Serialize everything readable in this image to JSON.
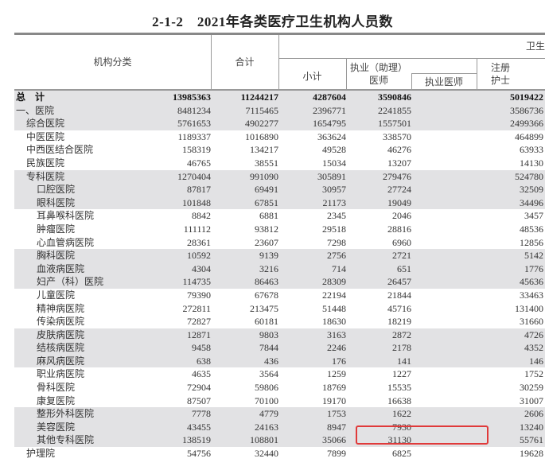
{
  "title": "2-1-2　2021年各类医疗卫生机构人员数",
  "header": {
    "category": "机构分类",
    "total": "合计",
    "group": "卫生",
    "subtotal": "小计",
    "licensed_asst_doctor": "执业（助理）\n医师",
    "licensed_asst_doctor_l1": "执业（助理）",
    "licensed_asst_doctor_l2": "医师",
    "licensed_doctor": "执业医师",
    "nurse_l1": "注册",
    "nurse_l2": "护士"
  },
  "highlight_color": "#e03a3a",
  "rows": [
    {
      "label": "总　计",
      "indent": 0,
      "bold": true,
      "shade": true,
      "values": [
        "13985363",
        "11244217",
        "4287604",
        "3590846",
        "5019422"
      ]
    },
    {
      "label": "一、医院",
      "indent": 0,
      "shade": true,
      "values": [
        "8481234",
        "7115465",
        "2396771",
        "2241855",
        "3586736"
      ]
    },
    {
      "label": "综合医院",
      "indent": 1,
      "shade": true,
      "values": [
        "5761653",
        "4902277",
        "1654795",
        "1557501",
        "2499366"
      ]
    },
    {
      "label": "中医医院",
      "indent": 1,
      "values": [
        "1189337",
        "1016890",
        "363624",
        "338570",
        "464899"
      ]
    },
    {
      "label": "中西医结合医院",
      "indent": 1,
      "values": [
        "158319",
        "134217",
        "49528",
        "46276",
        "63933"
      ]
    },
    {
      "label": "民族医院",
      "indent": 1,
      "values": [
        "46765",
        "38551",
        "15034",
        "13207",
        "14130"
      ]
    },
    {
      "label": "专科医院",
      "indent": 1,
      "shade": true,
      "values": [
        "1270404",
        "991090",
        "305891",
        "279476",
        "524780"
      ]
    },
    {
      "label": "口腔医院",
      "indent": 2,
      "shade": true,
      "values": [
        "87817",
        "69491",
        "30957",
        "27724",
        "32509"
      ]
    },
    {
      "label": "眼科医院",
      "indent": 2,
      "shade": true,
      "values": [
        "101848",
        "67851",
        "21173",
        "19049",
        "34496"
      ]
    },
    {
      "label": "耳鼻喉科医院",
      "indent": 2,
      "values": [
        "8842",
        "6881",
        "2345",
        "2046",
        "3457"
      ]
    },
    {
      "label": "肿瘤医院",
      "indent": 2,
      "values": [
        "111112",
        "93812",
        "29518",
        "28816",
        "48536"
      ]
    },
    {
      "label": "心血管病医院",
      "indent": 2,
      "values": [
        "28361",
        "23607",
        "7298",
        "6960",
        "12856"
      ]
    },
    {
      "label": "胸科医院",
      "indent": 2,
      "shade": true,
      "values": [
        "10592",
        "9139",
        "2756",
        "2721",
        "5142"
      ]
    },
    {
      "label": "血液病医院",
      "indent": 2,
      "shade": true,
      "values": [
        "4304",
        "3216",
        "714",
        "651",
        "1776"
      ]
    },
    {
      "label": "妇产（科）医院",
      "indent": 2,
      "shade": true,
      "values": [
        "114735",
        "86463",
        "28309",
        "26457",
        "45636"
      ]
    },
    {
      "label": "儿童医院",
      "indent": 2,
      "values": [
        "79390",
        "67678",
        "22194",
        "21844",
        "33463"
      ]
    },
    {
      "label": "精神病医院",
      "indent": 2,
      "values": [
        "272811",
        "213475",
        "51448",
        "45716",
        "131400"
      ]
    },
    {
      "label": "传染病医院",
      "indent": 2,
      "values": [
        "72827",
        "60181",
        "18630",
        "18219",
        "31660"
      ]
    },
    {
      "label": "皮肤病医院",
      "indent": 2,
      "shade": true,
      "values": [
        "12871",
        "9803",
        "3163",
        "2872",
        "4726"
      ]
    },
    {
      "label": "结核病医院",
      "indent": 2,
      "shade": true,
      "values": [
        "9458",
        "7844",
        "2246",
        "2178",
        "4352"
      ]
    },
    {
      "label": "麻风病医院",
      "indent": 2,
      "shade": true,
      "values": [
        "638",
        "436",
        "176",
        "141",
        "146"
      ]
    },
    {
      "label": "职业病医院",
      "indent": 2,
      "values": [
        "4635",
        "3564",
        "1259",
        "1227",
        "1752"
      ]
    },
    {
      "label": "骨科医院",
      "indent": 2,
      "values": [
        "72904",
        "59806",
        "18769",
        "15535",
        "30259"
      ]
    },
    {
      "label": "康复医院",
      "indent": 2,
      "values": [
        "87507",
        "70100",
        "19170",
        "16638",
        "31007"
      ]
    },
    {
      "label": "整形外科医院",
      "indent": 2,
      "shade": true,
      "values": [
        "7778",
        "4779",
        "1753",
        "1622",
        "2606"
      ]
    },
    {
      "label": "美容医院",
      "indent": 2,
      "shade": true,
      "values": [
        "43455",
        "24163",
        "8947",
        "7930",
        "13240"
      ]
    },
    {
      "label": "其他专科医院",
      "indent": 2,
      "shade": true,
      "values": [
        "138519",
        "108801",
        "35066",
        "31130",
        "55761"
      ]
    },
    {
      "label": "护理院",
      "indent": 1,
      "values": [
        "54756",
        "32440",
        "7899",
        "6825",
        "19628"
      ]
    }
  ]
}
